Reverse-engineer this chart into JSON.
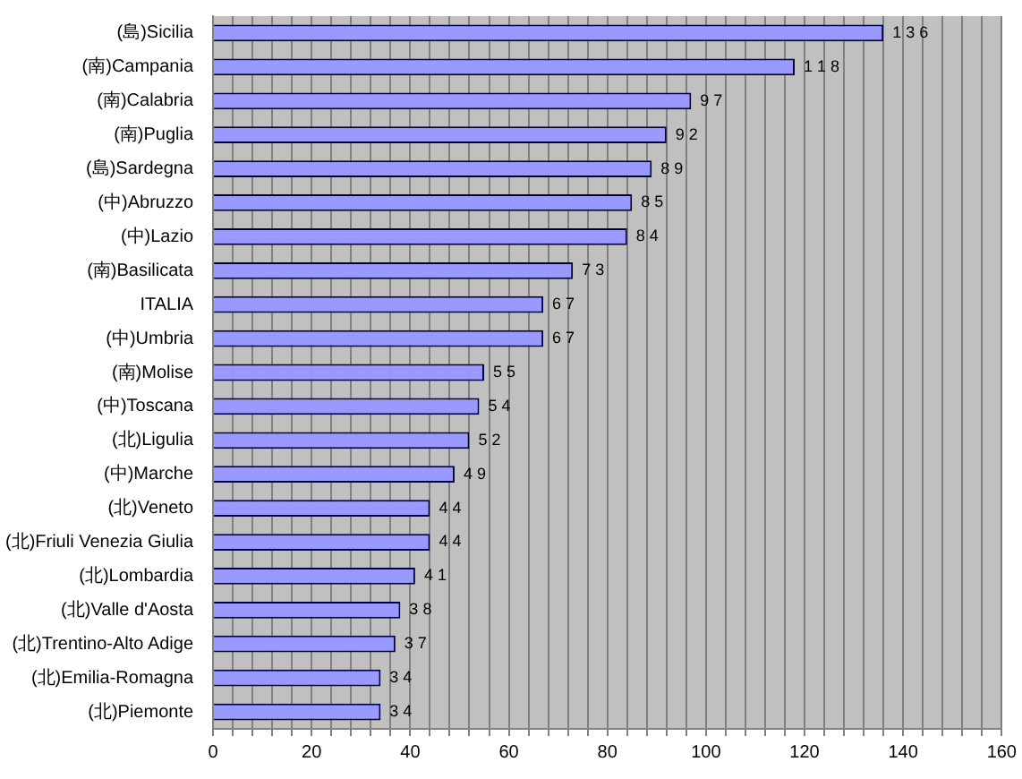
{
  "chart_data": {
    "type": "bar",
    "orientation": "horizontal",
    "categories": [
      "(島)Sicilia",
      "(南)Campania",
      "(南)Calabria",
      "(南)Puglia",
      "(島)Sardegna",
      "(中)Abruzzo",
      "(中)Lazio",
      "(南)Basilicata",
      "ITALIA",
      "(中)Umbria",
      "(南)Molise",
      "(中)Toscana",
      "(北)Ligulia",
      "(中)Marche",
      "(北)Veneto",
      "(北)Friuli Venezia Giulia",
      "(北)Lombardia",
      "(北)Valle d'Aosta",
      "(北)Trentino-Alto Adige",
      "(北)Emilia-Romagna",
      "(北)Piemonte"
    ],
    "values": [
      136,
      118,
      97,
      92,
      89,
      85,
      84,
      73,
      67,
      67,
      55,
      54,
      52,
      49,
      44,
      44,
      41,
      38,
      37,
      34,
      34
    ],
    "color": "#9999ff",
    "data_labels": true,
    "grid": "x",
    "legend": false,
    "xlim": [
      0,
      160
    ],
    "xticks": [
      0,
      {
        "value": 4,
        "label": null
      },
      {
        "value": 8,
        "label": null
      },
      {
        "value": 12,
        "label": null
      },
      {
        "value": 16,
        "label": null
      },
      20,
      {
        "value": 24,
        "label": null
      },
      {
        "value": 28,
        "label": null
      },
      {
        "value": 32,
        "label": null
      },
      {
        "value": 36,
        "label": null
      },
      40,
      {
        "value": 44,
        "label": null
      },
      {
        "value": 48,
        "label": null
      },
      {
        "value": 52,
        "label": null
      },
      {
        "value": 56,
        "label": null
      },
      60,
      {
        "value": 64,
        "label": null
      },
      {
        "value": 68,
        "label": null
      },
      {
        "value": 72,
        "label": null
      },
      {
        "value": 76,
        "label": null
      },
      80,
      {
        "value": 84,
        "label": null
      },
      {
        "value": 88,
        "label": null
      },
      {
        "value": 92,
        "label": null
      },
      {
        "value": 96,
        "label": null
      },
      100,
      {
        "value": 104,
        "label": null
      },
      {
        "value": 108,
        "label": null
      },
      {
        "value": 112,
        "label": null
      },
      {
        "value": 116,
        "label": null
      },
      120,
      {
        "value": 124,
        "label": null
      },
      {
        "value": 128,
        "label": null
      },
      {
        "value": 132,
        "label": null
      },
      {
        "value": 136,
        "label": null
      },
      140,
      {
        "value": 144,
        "label": null
      },
      {
        "value": 148,
        "label": null
      },
      {
        "value": 152,
        "label": null
      },
      {
        "value": 156,
        "label": null
      },
      160
    ]
  }
}
